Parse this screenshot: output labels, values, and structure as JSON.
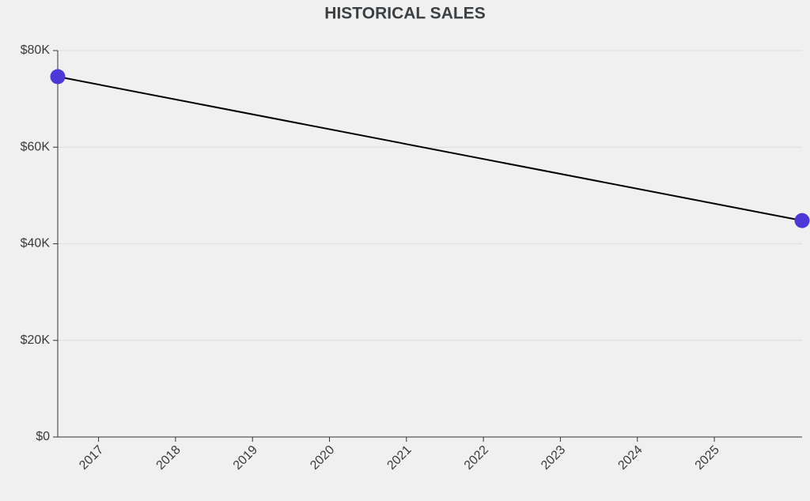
{
  "chart_data": {
    "type": "line",
    "title": "HISTORICAL SALES",
    "x": [
      2016.47,
      2026.14
    ],
    "values": [
      74600,
      44800
    ],
    "line_color": "#000000",
    "marker_color": "#4b38d8",
    "xlim": [
      2016.47,
      2026.14
    ],
    "xticks": [
      2017,
      2018,
      2019,
      2020,
      2021,
      2022,
      2023,
      2024,
      2025
    ],
    "ylim": [
      0,
      80000
    ],
    "yticks": [
      {
        "value": 0,
        "label": "$0"
      },
      {
        "value": 20000,
        "label": "$20K"
      },
      {
        "value": 40000,
        "label": "$40K"
      },
      {
        "value": 60000,
        "label": "$60K"
      },
      {
        "value": 80000,
        "label": "$80K"
      }
    ],
    "grid": true
  }
}
